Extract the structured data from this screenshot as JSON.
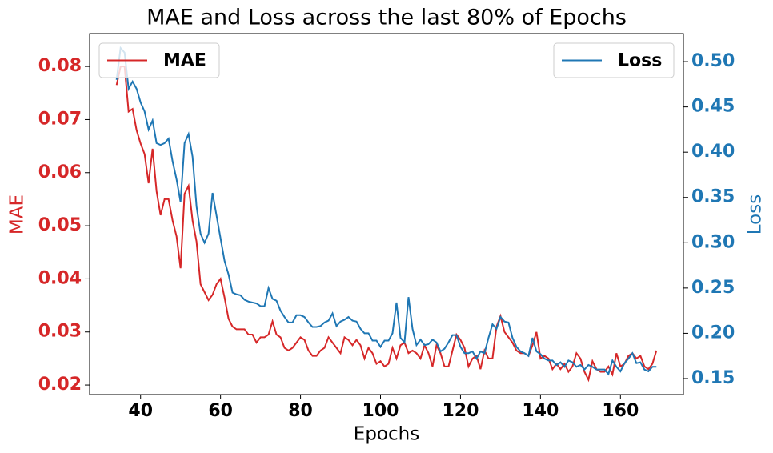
{
  "chart_data": {
    "type": "line",
    "title": "MAE and Loss across the last 80% of Epochs",
    "xlabel": "Epochs",
    "ylabel": "MAE",
    "y2label": "Loss",
    "x": [
      34,
      35,
      36,
      37,
      38,
      39,
      40,
      41,
      42,
      43,
      44,
      45,
      46,
      47,
      48,
      49,
      50,
      51,
      52,
      53,
      54,
      55,
      56,
      57,
      58,
      59,
      60,
      61,
      62,
      63,
      64,
      65,
      66,
      67,
      68,
      69,
      70,
      71,
      72,
      73,
      74,
      75,
      76,
      77,
      78,
      79,
      80,
      81,
      82,
      83,
      84,
      85,
      86,
      87,
      88,
      89,
      90,
      91,
      92,
      93,
      94,
      95,
      96,
      97,
      98,
      99,
      100,
      101,
      102,
      103,
      104,
      105,
      106,
      107,
      108,
      109,
      110,
      111,
      112,
      113,
      114,
      115,
      116,
      117,
      118,
      119,
      120,
      121,
      122,
      123,
      124,
      125,
      126,
      127,
      128,
      129,
      130,
      131,
      132,
      133,
      134,
      135,
      136,
      137,
      138,
      139,
      140,
      141,
      142,
      143,
      144,
      145,
      146,
      147,
      148,
      149,
      150,
      151,
      152,
      153,
      154,
      155,
      156,
      157,
      158,
      159,
      160,
      161,
      162,
      163,
      164,
      165,
      166,
      167,
      168,
      169
    ],
    "series": [
      {
        "name": "MAE",
        "color": "#d62728",
        "axis": "y",
        "legend": "upper left",
        "values": [
          0.0765,
          0.08,
          0.08,
          0.0715,
          0.072,
          0.068,
          0.0655,
          0.0635,
          0.058,
          0.0645,
          0.0565,
          0.052,
          0.055,
          0.055,
          0.051,
          0.048,
          0.042,
          0.056,
          0.0575,
          0.051,
          0.047,
          0.039,
          0.0375,
          0.036,
          0.037,
          0.039,
          0.04,
          0.0365,
          0.0325,
          0.031,
          0.0305,
          0.0305,
          0.0305,
          0.0295,
          0.0295,
          0.028,
          0.029,
          0.029,
          0.0295,
          0.032,
          0.0295,
          0.029,
          0.027,
          0.0265,
          0.027,
          0.028,
          0.029,
          0.0285,
          0.0265,
          0.0255,
          0.0255,
          0.0265,
          0.027,
          0.029,
          0.028,
          0.027,
          0.026,
          0.029,
          0.0285,
          0.0275,
          0.0285,
          0.0275,
          0.025,
          0.027,
          0.026,
          0.024,
          0.0245,
          0.0235,
          0.024,
          0.027,
          0.025,
          0.0275,
          0.028,
          0.026,
          0.0265,
          0.026,
          0.025,
          0.0275,
          0.026,
          0.0235,
          0.0275,
          0.026,
          0.0235,
          0.0235,
          0.0265,
          0.0295,
          0.0285,
          0.027,
          0.0235,
          0.025,
          0.0255,
          0.023,
          0.0265,
          0.025,
          0.025,
          0.031,
          0.033,
          0.03,
          0.029,
          0.028,
          0.0265,
          0.026,
          0.026,
          0.0255,
          0.0275,
          0.03,
          0.025,
          0.0255,
          0.025,
          0.023,
          0.024,
          0.023,
          0.024,
          0.0225,
          0.0235,
          0.026,
          0.025,
          0.0225,
          0.021,
          0.0245,
          0.023,
          0.0225,
          0.0225,
          0.0235,
          0.022,
          0.026,
          0.0235,
          0.024,
          0.0255,
          0.026,
          0.025,
          0.0255,
          0.0235,
          0.023,
          0.024,
          0.0265
        ]
      },
      {
        "name": "Loss",
        "color": "#1f77b4",
        "axis": "y2",
        "legend": "upper right",
        "values": [
          0.48,
          0.515,
          0.51,
          0.47,
          0.478,
          0.47,
          0.455,
          0.445,
          0.425,
          0.435,
          0.41,
          0.408,
          0.41,
          0.415,
          0.39,
          0.37,
          0.345,
          0.41,
          0.42,
          0.395,
          0.34,
          0.31,
          0.3,
          0.31,
          0.355,
          0.33,
          0.305,
          0.28,
          0.265,
          0.245,
          0.243,
          0.242,
          0.237,
          0.235,
          0.234,
          0.233,
          0.23,
          0.23,
          0.25,
          0.238,
          0.236,
          0.225,
          0.218,
          0.212,
          0.212,
          0.22,
          0.22,
          0.218,
          0.212,
          0.207,
          0.207,
          0.208,
          0.212,
          0.214,
          0.222,
          0.208,
          0.213,
          0.215,
          0.218,
          0.214,
          0.213,
          0.205,
          0.2,
          0.2,
          0.192,
          0.192,
          0.185,
          0.192,
          0.192,
          0.2,
          0.234,
          0.195,
          0.19,
          0.24,
          0.205,
          0.187,
          0.193,
          0.187,
          0.188,
          0.193,
          0.19,
          0.18,
          0.183,
          0.19,
          0.198,
          0.198,
          0.185,
          0.178,
          0.178,
          0.18,
          0.172,
          0.18,
          0.178,
          0.195,
          0.21,
          0.205,
          0.218,
          0.213,
          0.212,
          0.195,
          0.185,
          0.18,
          0.178,
          0.175,
          0.195,
          0.18,
          0.177,
          0.172,
          0.17,
          0.17,
          0.165,
          0.168,
          0.163,
          0.17,
          0.168,
          0.163,
          0.165,
          0.16,
          0.165,
          0.163,
          0.16,
          0.16,
          0.16,
          0.155,
          0.17,
          0.163,
          0.158,
          0.167,
          0.172,
          0.178,
          0.167,
          0.168,
          0.16,
          0.158,
          0.163,
          0.163
        ]
      }
    ],
    "xlim": [
      27.25,
      175.75
    ],
    "xticks": [
      40,
      60,
      80,
      100,
      120,
      140,
      160
    ],
    "ylim": [
      0.0182,
      0.0862
    ],
    "yticks": [
      0.02,
      0.03,
      0.04,
      0.05,
      0.06,
      0.07,
      0.08
    ],
    "y2lim": [
      0.1323,
      0.531
    ],
    "y2ticks": [
      0.15,
      {
        "value": 0.2,
        "label": "0.20"
      },
      0.25,
      {
        "value": 0.3,
        "label": "0.30"
      },
      0.35,
      {
        "value": 0.4,
        "label": "0.40"
      },
      0.45,
      {
        "value": 0.5,
        "label": "0.50"
      }
    ]
  }
}
